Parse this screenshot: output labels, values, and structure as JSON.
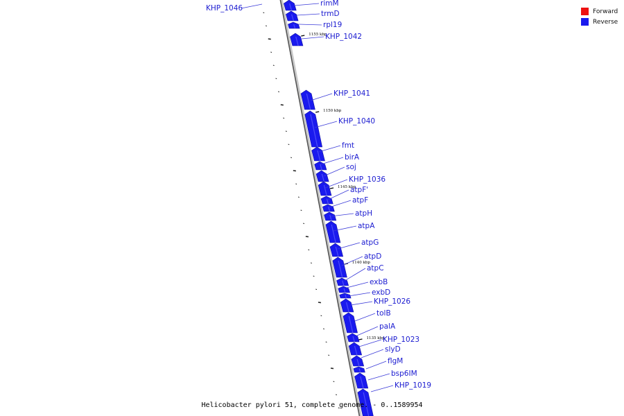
{
  "legend": {
    "items": [
      {
        "label": "Forward",
        "color": "#ee1111"
      },
      {
        "label": "Reverse",
        "color": "#1a1aee"
      }
    ]
  },
  "caption": "Helicobacter pylori 51, complete genome. - 0..1589954",
  "ticks": [
    {
      "label": "1155 kbp"
    },
    {
      "label": "1150 kbp"
    },
    {
      "label": "1145 kbp"
    },
    {
      "label": "1140 kbp"
    },
    {
      "label": "1135 kbp"
    }
  ],
  "genes": [
    {
      "name": "KHP_1046",
      "strand": "reverse"
    },
    {
      "name": "rimM",
      "strand": "reverse"
    },
    {
      "name": "trmD",
      "strand": "reverse"
    },
    {
      "name": "rpl19",
      "strand": "reverse"
    },
    {
      "name": "KHP_1042",
      "strand": "reverse"
    },
    {
      "name": "KHP_1041",
      "strand": "reverse"
    },
    {
      "name": "KHP_1040",
      "strand": "reverse"
    },
    {
      "name": "fmt",
      "strand": "reverse"
    },
    {
      "name": "birA",
      "strand": "reverse"
    },
    {
      "name": "soj",
      "strand": "reverse"
    },
    {
      "name": "KHP_1036",
      "strand": "reverse"
    },
    {
      "name": "atpF'",
      "strand": "reverse"
    },
    {
      "name": "atpF",
      "strand": "reverse"
    },
    {
      "name": "atpH",
      "strand": "reverse"
    },
    {
      "name": "atpA",
      "strand": "reverse"
    },
    {
      "name": "atpG",
      "strand": "reverse"
    },
    {
      "name": "atpD",
      "strand": "reverse"
    },
    {
      "name": "atpC",
      "strand": "reverse"
    },
    {
      "name": "exbB",
      "strand": "reverse"
    },
    {
      "name": "exbD",
      "strand": "reverse"
    },
    {
      "name": "KHP_1026",
      "strand": "reverse"
    },
    {
      "name": "tolB",
      "strand": "reverse"
    },
    {
      "name": "palA",
      "strand": "reverse"
    },
    {
      "name": "KHP_1023",
      "strand": "reverse"
    },
    {
      "name": "slyD",
      "strand": "reverse"
    },
    {
      "name": "flgM",
      "strand": "reverse"
    },
    {
      "name": "bsp6IM",
      "strand": "reverse"
    },
    {
      "name": "KHP_1019",
      "strand": "reverse"
    }
  ]
}
